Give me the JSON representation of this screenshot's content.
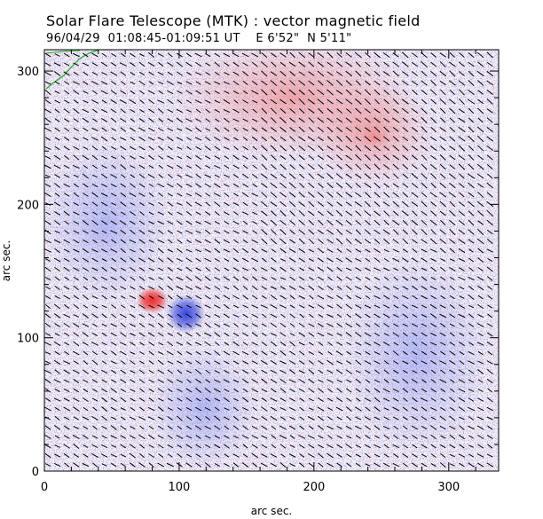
{
  "header": {
    "title": "Solar Flare Telescope (MTK) : vector magnetic field",
    "subtitle": "96/04/29  01:08:45-01:09:51 UT    E 6'52\"  N 5'11\""
  },
  "chart_data": {
    "type": "heatmap",
    "xlabel": "arc sec.",
    "ylabel": "arc sec.",
    "xlim": [
      0,
      337
    ],
    "ylim": [
      0,
      316
    ],
    "xticks": [
      0,
      100,
      200,
      300
    ],
    "yticks": [
      0,
      100,
      200,
      300
    ],
    "colors": {
      "positive": "#e03030",
      "negative": "#3040e0",
      "vectors": "#000000",
      "contour": "#22aa22"
    },
    "features": [
      {
        "kind": "positive-polarity",
        "x": 80,
        "y": 128
      },
      {
        "kind": "negative-polarity",
        "x": 105,
        "y": 118
      },
      {
        "kind": "positive-polarity",
        "x": 245,
        "y": 250
      }
    ]
  }
}
